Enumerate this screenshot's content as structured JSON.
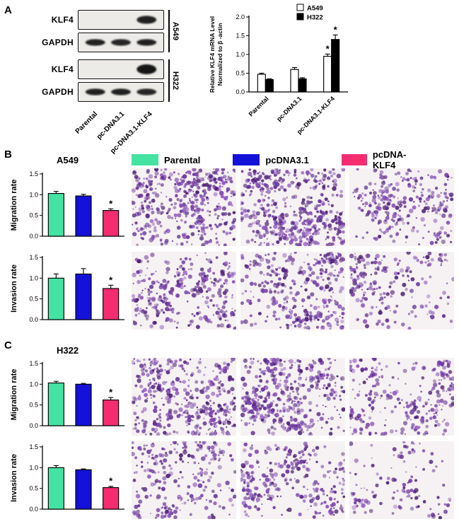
{
  "figure": {
    "legend": {
      "items": [
        {
          "label": "Parental",
          "color": "#45e3a3"
        },
        {
          "label": "pcDNA3.1",
          "color": "#1411d8"
        },
        {
          "label": "pcDNA-KLF4",
          "color": "#f52d70"
        }
      ]
    },
    "panel_a": {
      "label": "A",
      "blot": {
        "cell_lines": [
          "A549",
          "H322"
        ],
        "lane_labels": [
          "Parental",
          "pc-DNA3.1",
          "pc-DNA3.1-KLF4"
        ],
        "rows": [
          {
            "protein": "KLF4",
            "cell_line": "A549",
            "bands": [
              0,
              0,
              0.95
            ],
            "band_ry": 6
          },
          {
            "protein": "GAPDH",
            "cell_line": "A549",
            "bands": [
              0.95,
              0.92,
              0.95
            ],
            "band_ry": 5
          },
          {
            "protein": "KLF4",
            "cell_line": "H322",
            "bands": [
              0,
              0,
              1
            ],
            "band_ry": 7.5
          },
          {
            "protein": "GAPDH",
            "cell_line": "H322",
            "bands": [
              0.95,
              0.95,
              0.92
            ],
            "band_ry": 5
          }
        ]
      },
      "chart": {
        "type": "bar",
        "categories": [
          "Parental",
          "pc-DNA3.1",
          "pc-DNA3.1-KLF4"
        ],
        "series": [
          {
            "name": "A549",
            "color": "#ffffff",
            "values": [
              0.47,
              0.6,
              0.95
            ],
            "errors": [
              0.03,
              0.05,
              0.06
            ],
            "sig": [
              false,
              false,
              true
            ]
          },
          {
            "name": "H322",
            "color": "#000000",
            "values": [
              0.33,
              0.35,
              1.4
            ],
            "errors": [
              0.02,
              0.03,
              0.12
            ],
            "sig": [
              false,
              false,
              true
            ]
          }
        ],
        "ylabel": [
          "Relative KLF4 mRNA Level",
          "Normalized to β -actin"
        ],
        "ylabel_size": 8.5,
        "ylim": [
          0,
          2
        ],
        "yticks": [
          0,
          0.5,
          1,
          1.5,
          2
        ],
        "sig_symbol": "*",
        "legend_position": "top"
      }
    },
    "panel_b": {
      "label": "B",
      "title": "A549",
      "migration": {
        "chart": {
          "type": "bar",
          "ylabel": [
            "Migration rate"
          ],
          "ylabel_size": 11,
          "ylim": [
            0,
            1.5
          ],
          "yticks": [
            0,
            0.5,
            1,
            1.5
          ],
          "conditions": [
            "Parental",
            "pcDNA3.1",
            "pcDNA-KLF4"
          ],
          "values": [
            1.03,
            0.97,
            0.62
          ],
          "errors": [
            0.05,
            0.04,
            0.04
          ],
          "sig": [
            false,
            false,
            true
          ],
          "sig_symbol": "*"
        },
        "micrographs": [
          {
            "condition": "Parental",
            "density": 520,
            "seed": 1
          },
          {
            "condition": "pcDNA3.1",
            "density": 540,
            "seed": 2
          },
          {
            "condition": "pcDNA-KLF4",
            "density": 300,
            "seed": 3
          }
        ]
      },
      "invasion": {
        "chart": {
          "type": "bar",
          "ylabel": [
            "Invasion rate"
          ],
          "ylabel_size": 11,
          "ylim": [
            0,
            1.5
          ],
          "yticks": [
            0,
            0.5,
            1,
            1.5
          ],
          "conditions": [
            "Parental",
            "pcDNA3.1",
            "pcDNA-KLF4"
          ],
          "values": [
            1.0,
            1.1,
            0.75
          ],
          "errors": [
            0.1,
            0.13,
            0.08
          ],
          "sig": [
            false,
            false,
            true
          ],
          "sig_symbol": "*"
        },
        "micrographs": [
          {
            "condition": "Parental",
            "density": 340,
            "seed": 4
          },
          {
            "condition": "pcDNA3.1",
            "density": 400,
            "seed": 5
          },
          {
            "condition": "pcDNA-KLF4",
            "density": 230,
            "seed": 6
          }
        ]
      }
    },
    "panel_c": {
      "label": "C",
      "title": "H322",
      "migration": {
        "chart": {
          "type": "bar",
          "ylabel": [
            "Migration rate"
          ],
          "ylabel_size": 11,
          "ylim": [
            0,
            1.5
          ],
          "yticks": [
            0,
            0.5,
            1,
            1.5
          ],
          "conditions": [
            "Parental",
            "pcDNA3.1",
            "pcDNA-KLF4"
          ],
          "values": [
            1.03,
            1.0,
            0.62
          ],
          "errors": [
            0.04,
            0.02,
            0.06
          ],
          "sig": [
            false,
            false,
            true
          ],
          "sig_symbol": "*"
        },
        "micrographs": [
          {
            "condition": "Parental",
            "density": 460,
            "seed": 7
          },
          {
            "condition": "pcDNA3.1",
            "density": 480,
            "seed": 8
          },
          {
            "condition": "pcDNA-KLF4",
            "density": 280,
            "seed": 9
          }
        ]
      },
      "invasion": {
        "chart": {
          "type": "bar",
          "ylabel": [
            "Invasion rate"
          ],
          "ylabel_size": 11,
          "ylim": [
            0,
            1.5
          ],
          "yticks": [
            0,
            0.5,
            1,
            1.5
          ],
          "conditions": [
            "Parental",
            "pcDNA3.1",
            "pcDNA-KLF4"
          ],
          "values": [
            1.0,
            0.95,
            0.52
          ],
          "errors": [
            0.05,
            0.02,
            0.03
          ],
          "sig": [
            false,
            false,
            true
          ],
          "sig_symbol": "*"
        },
        "micrographs": [
          {
            "condition": "Parental",
            "density": 300,
            "seed": 10
          },
          {
            "condition": "pcDNA3.1",
            "density": 320,
            "seed": 11
          },
          {
            "condition": "pcDNA-KLF4",
            "density": 140,
            "seed": 12
          }
        ]
      }
    }
  }
}
